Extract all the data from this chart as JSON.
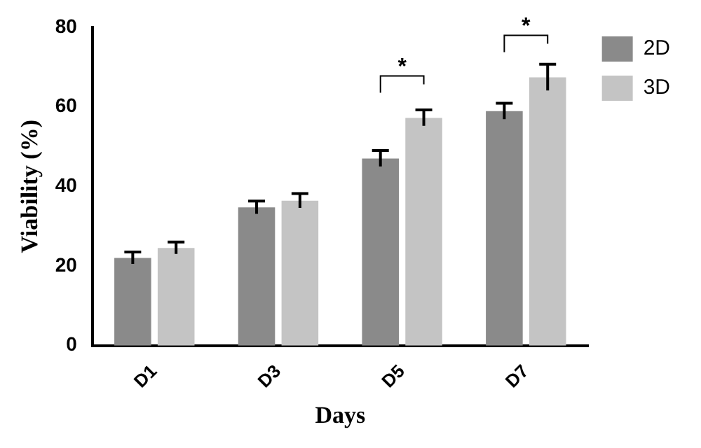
{
  "chart_data": {
    "type": "bar",
    "xlabel": "Days",
    "ylabel": "Viability (%)",
    "categories": [
      "D1",
      "D3",
      "D5",
      "D7"
    ],
    "series": [
      {
        "name": "2D",
        "color": "#8a8a8a",
        "values": [
          22,
          34.7,
          47,
          58.9
        ],
        "errors": [
          1.5,
          1.6,
          2,
          2
        ]
      },
      {
        "name": "3D",
        "color": "#c4c4c4",
        "values": [
          24.5,
          36.4,
          57.2,
          67.4
        ],
        "errors": [
          1.5,
          1.8,
          2,
          3.3
        ]
      }
    ],
    "ylim": [
      0,
      80
    ],
    "yticks": [
      0,
      20,
      40,
      60,
      80
    ],
    "grid": false,
    "legend": "top right",
    "annotations": [
      "*",
      "*"
    ]
  }
}
